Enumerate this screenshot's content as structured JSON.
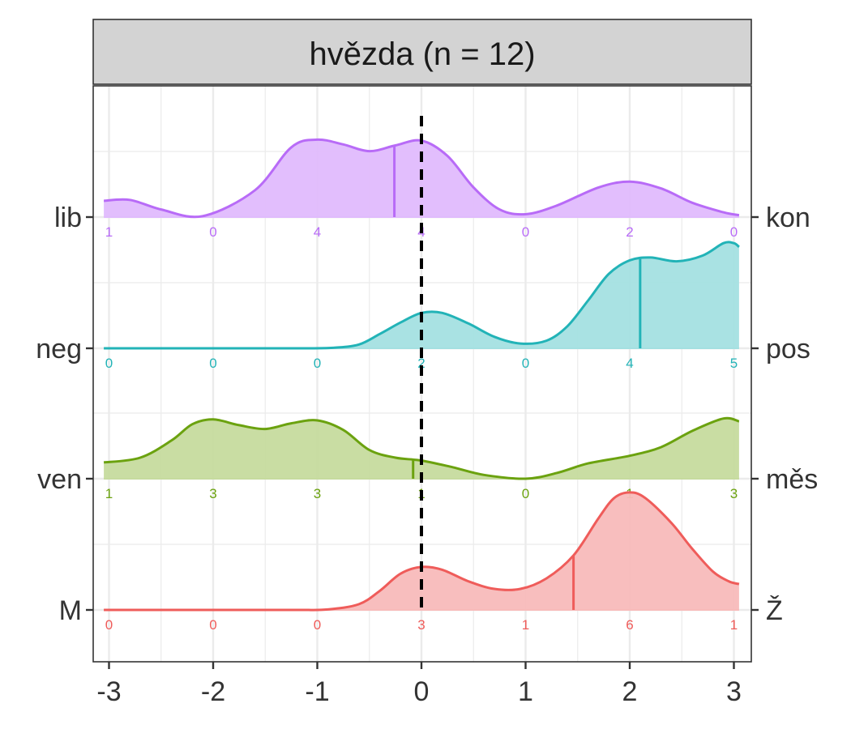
{
  "chart_data": {
    "type": "ridgeline-density",
    "title": "hvězda (n = 12)",
    "xlabel": "",
    "ylabel": "",
    "x_ticks": [
      -3,
      -2,
      -1,
      0,
      1,
      2,
      3
    ],
    "xlim": [
      -3.1,
      3.1
    ],
    "reference_line_x": 0,
    "grid": true,
    "rows": [
      {
        "left_label": "lib",
        "right_label": "kon",
        "color": "#B86BF7",
        "fill": "#E0BBFD",
        "mean": -0.26,
        "counts": [
          1,
          0,
          4,
          4,
          0,
          2,
          0
        ],
        "density": [
          [
            -3.05,
            0.17
          ],
          [
            -2.8,
            0.18
          ],
          [
            -2.5,
            0.08
          ],
          [
            -2.1,
            0.01
          ],
          [
            -1.6,
            0.28
          ],
          [
            -1.25,
            0.73
          ],
          [
            -1.0,
            0.81
          ],
          [
            -0.75,
            0.76
          ],
          [
            -0.5,
            0.69
          ],
          [
            -0.25,
            0.75
          ],
          [
            0.0,
            0.8
          ],
          [
            0.25,
            0.64
          ],
          [
            0.5,
            0.31
          ],
          [
            0.75,
            0.08
          ],
          [
            1.0,
            0.03
          ],
          [
            1.3,
            0.12
          ],
          [
            1.7,
            0.31
          ],
          [
            2.0,
            0.37
          ],
          [
            2.3,
            0.3
          ],
          [
            2.6,
            0.15
          ],
          [
            2.9,
            0.05
          ],
          [
            3.05,
            0.02
          ]
        ]
      },
      {
        "left_label": "neg",
        "right_label": "pos",
        "color": "#22B3B7",
        "fill": "#A4E0E1",
        "mean": 2.1,
        "counts": [
          0,
          0,
          0,
          2,
          0,
          4,
          5
        ],
        "density": [
          [
            -3.05,
            0.0
          ],
          [
            -2.0,
            0.0
          ],
          [
            -1.2,
            0.0
          ],
          [
            -0.85,
            0.005
          ],
          [
            -0.6,
            0.04
          ],
          [
            -0.4,
            0.15
          ],
          [
            -0.2,
            0.27
          ],
          [
            0.0,
            0.37
          ],
          [
            0.2,
            0.37
          ],
          [
            0.45,
            0.26
          ],
          [
            0.7,
            0.12
          ],
          [
            0.95,
            0.05
          ],
          [
            1.2,
            0.08
          ],
          [
            1.4,
            0.23
          ],
          [
            1.6,
            0.5
          ],
          [
            1.8,
            0.78
          ],
          [
            2.0,
            0.92
          ],
          [
            2.2,
            0.95
          ],
          [
            2.45,
            0.91
          ],
          [
            2.7,
            0.97
          ],
          [
            2.9,
            1.1
          ],
          [
            3.0,
            1.1
          ],
          [
            3.05,
            1.06
          ]
        ]
      },
      {
        "left_label": "ven",
        "right_label": "měs",
        "color": "#6BA20F",
        "fill": "#C6DB9E",
        "mean": -0.08,
        "counts": [
          1,
          3,
          3,
          1,
          0,
          1,
          3
        ],
        "density": [
          [
            -3.05,
            0.17
          ],
          [
            -2.7,
            0.22
          ],
          [
            -2.4,
            0.4
          ],
          [
            -2.2,
            0.57
          ],
          [
            -2.0,
            0.62
          ],
          [
            -1.75,
            0.56
          ],
          [
            -1.5,
            0.52
          ],
          [
            -1.25,
            0.58
          ],
          [
            -1.0,
            0.61
          ],
          [
            -0.75,
            0.51
          ],
          [
            -0.5,
            0.3
          ],
          [
            -0.25,
            0.22
          ],
          [
            0.0,
            0.19
          ],
          [
            0.3,
            0.12
          ],
          [
            0.6,
            0.04
          ],
          [
            1.0,
            0.0
          ],
          [
            1.3,
            0.06
          ],
          [
            1.6,
            0.16
          ],
          [
            2.0,
            0.24
          ],
          [
            2.3,
            0.33
          ],
          [
            2.6,
            0.5
          ],
          [
            2.9,
            0.63
          ],
          [
            3.05,
            0.6
          ]
        ]
      },
      {
        "left_label": "M",
        "right_label": "Ž",
        "color": "#EF5C5A",
        "fill": "#F8BBBA",
        "mean": 1.46,
        "counts": [
          0,
          0,
          0,
          3,
          1,
          6,
          1
        ],
        "density": [
          [
            -3.05,
            0.0
          ],
          [
            -2.0,
            0.0
          ],
          [
            -1.2,
            0.0
          ],
          [
            -0.9,
            0.005
          ],
          [
            -0.6,
            0.06
          ],
          [
            -0.4,
            0.2
          ],
          [
            -0.2,
            0.38
          ],
          [
            0.0,
            0.45
          ],
          [
            0.2,
            0.42
          ],
          [
            0.45,
            0.3
          ],
          [
            0.7,
            0.22
          ],
          [
            0.95,
            0.22
          ],
          [
            1.2,
            0.33
          ],
          [
            1.46,
            0.57
          ],
          [
            1.7,
            0.96
          ],
          [
            1.85,
            1.17
          ],
          [
            2.0,
            1.23
          ],
          [
            2.15,
            1.17
          ],
          [
            2.4,
            0.91
          ],
          [
            2.6,
            0.64
          ],
          [
            2.8,
            0.4
          ],
          [
            2.95,
            0.3
          ],
          [
            3.05,
            0.27
          ]
        ]
      }
    ]
  }
}
